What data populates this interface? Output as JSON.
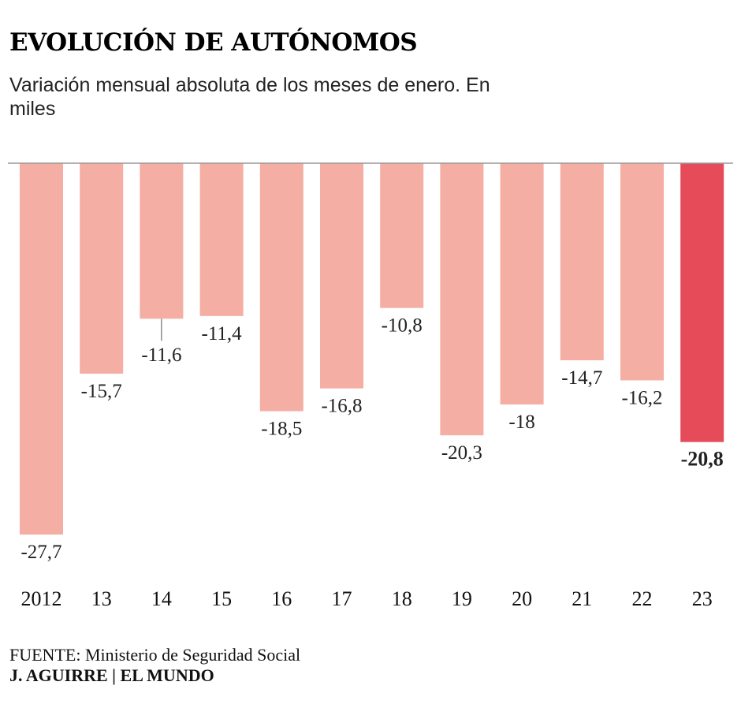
{
  "title": "EVOLUCIÓN DE AUTÓNOMOS",
  "subtitle": "Variación mensual absoluta de los meses de enero. En miles",
  "chart_data": {
    "type": "bar",
    "categories": [
      "2012",
      "13",
      "14",
      "15",
      "16",
      "17",
      "18",
      "19",
      "20",
      "21",
      "22",
      "23"
    ],
    "values": [
      -27.7,
      -15.7,
      -11.6,
      -11.4,
      -18.5,
      -16.8,
      -10.8,
      -20.3,
      -18,
      -14.7,
      -16.2,
      -20.8
    ],
    "value_labels": [
      "-27,7",
      "-15,7",
      "-11,6",
      "-11,4",
      "-18,5",
      "-16,8",
      "-10,8",
      "-20,3",
      "-18",
      "-14,7",
      "-16,2",
      "-20,8"
    ],
    "highlight_index": 11,
    "ylim": [
      -27.7,
      0
    ],
    "grid": false,
    "colors": {
      "bar": "#f4aea3",
      "highlight": "#e64b59",
      "baseline": "#999999"
    }
  },
  "footer": {
    "source_label": "FUENTE:",
    "source_text": "Ministerio de Seguridad Social",
    "credit": "J. AGUIRRE | EL MUNDO"
  }
}
